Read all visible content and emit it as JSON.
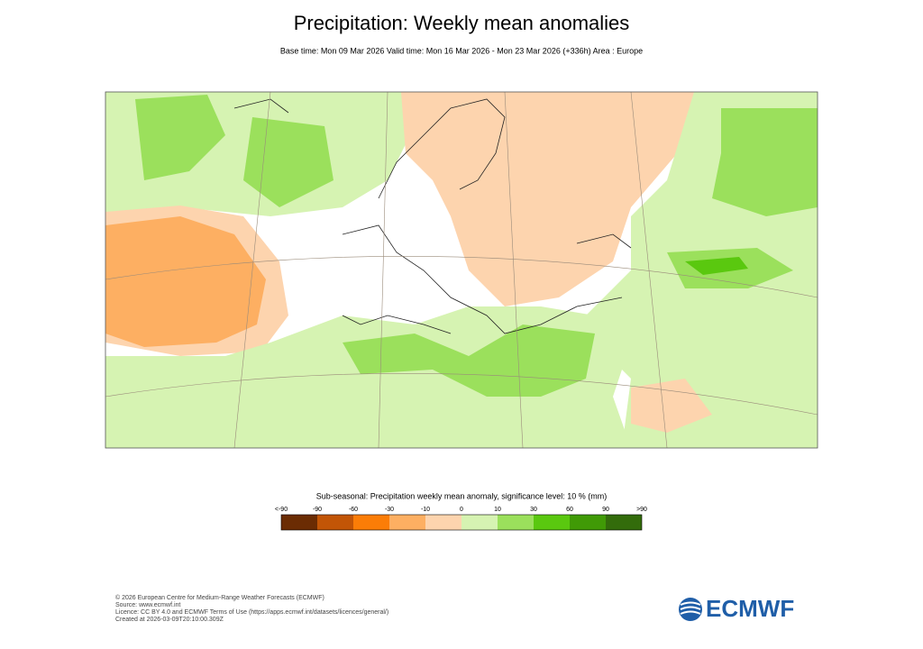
{
  "header": {
    "title": "Precipitation: Weekly mean anomalies",
    "subtitle": "Base time: Mon 09 Mar 2026 Valid time: Mon 16 Mar 2026 - Mon 23 Mar 2026 (+336h) Area : Europe"
  },
  "legend": {
    "title": "Sub-seasonal: Precipitation weekly mean anomaly, significance level: 10 % (mm)",
    "labels": [
      "<-90",
      "-90",
      "-60",
      "-30",
      "-10",
      "0",
      "10",
      "30",
      "60",
      "90",
      ">90"
    ],
    "colors": [
      "#6b2c03",
      "#c25506",
      "#fb7d07",
      "#fdaf62",
      "#fdd4ae",
      "#d6f3b2",
      "#9be05c",
      "#5ac80f",
      "#409a06",
      "#336c0b"
    ]
  },
  "footer": {
    "lines": [
      "© 2026 European Centre for Medium-Range Weather Forecasts (ECMWF)",
      "Source: www.ecmwf.int",
      "Licence: CC BY 4.0 and ECMWF Terms of Use (https://apps.ecmwf.int/datasets/licences/general/)",
      "Created at 2026-03-09T20:10:00.309Z"
    ],
    "logo": "ECMWF"
  }
}
